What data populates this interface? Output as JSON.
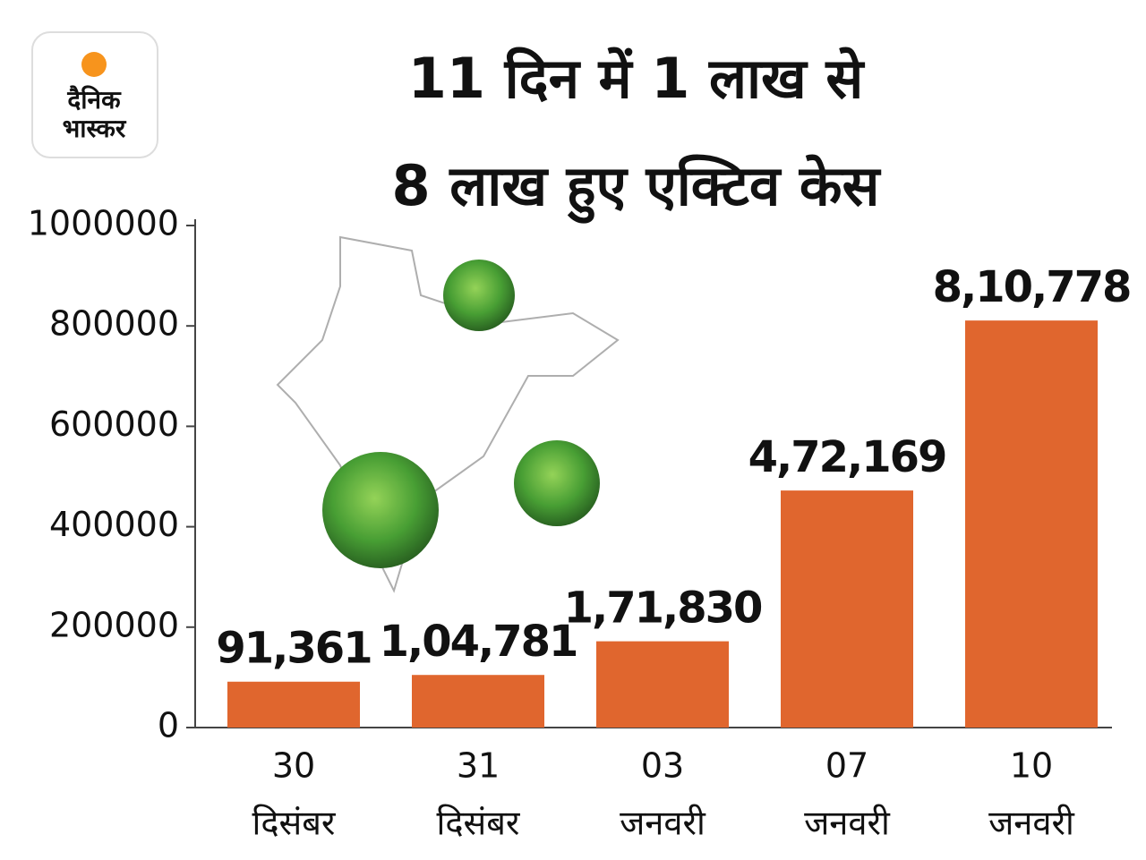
{
  "logo": [
    "दैनिक",
    "भास्कर"
  ],
  "chart_data": {
    "type": "bar",
    "title": [
      "11 दिन में 1 लाख से",
      "8 लाख हुए एक्टिव केस"
    ],
    "categories": [
      [
        "30",
        "दिसंबर"
      ],
      [
        "31",
        "दिसंबर"
      ],
      [
        "03",
        "जनवरी"
      ],
      [
        "07",
        "जनवरी"
      ],
      [
        "10",
        "जनवरी"
      ]
    ],
    "values": [
      91361,
      104781,
      171830,
      472169,
      810778
    ],
    "value_labels": [
      "91,361",
      "1,04,781",
      "1,71,830",
      "4,72,169",
      "8,10,778"
    ],
    "color": "#e0662e",
    "ylim": [
      0,
      1000000
    ],
    "yticks": [
      0,
      200000,
      400000,
      600000,
      800000,
      1000000
    ],
    "grid": false
  }
}
